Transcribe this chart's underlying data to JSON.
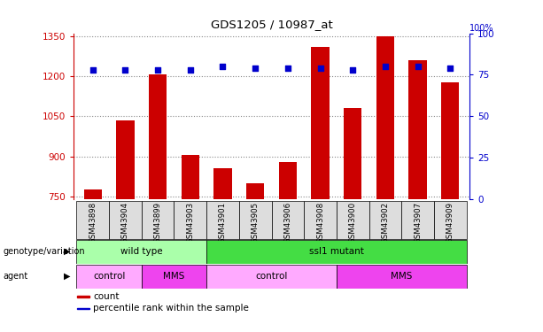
{
  "title": "GDS1205 / 10987_at",
  "samples": [
    "GSM43898",
    "GSM43904",
    "GSM43899",
    "GSM43903",
    "GSM43901",
    "GSM43905",
    "GSM43906",
    "GSM43908",
    "GSM43900",
    "GSM43902",
    "GSM43907",
    "GSM43909"
  ],
  "counts": [
    775,
    1035,
    1205,
    905,
    855,
    800,
    880,
    1310,
    1080,
    1350,
    1260,
    1175
  ],
  "percentile": [
    78,
    78,
    78,
    78,
    80,
    79,
    79,
    79,
    78,
    80,
    80,
    79
  ],
  "ylim_left": [
    740,
    1360
  ],
  "ylim_right": [
    0,
    100
  ],
  "yticks_left": [
    750,
    900,
    1050,
    1200,
    1350
  ],
  "yticks_right": [
    0,
    25,
    50,
    75,
    100
  ],
  "bar_color": "#cc0000",
  "dot_color": "#0000cc",
  "grid_color": "#888888",
  "genotype_groups": [
    {
      "label": "wild type",
      "start": 0,
      "end": 3,
      "color": "#aaffaa"
    },
    {
      "label": "ssl1 mutant",
      "start": 4,
      "end": 11,
      "color": "#44dd44"
    }
  ],
  "agent_groups": [
    {
      "label": "control",
      "start": 0,
      "end": 1,
      "color": "#ffaaff"
    },
    {
      "label": "MMS",
      "start": 2,
      "end": 3,
      "color": "#ee44ee"
    },
    {
      "label": "control",
      "start": 4,
      "end": 7,
      "color": "#ffaaff"
    },
    {
      "label": "MMS",
      "start": 8,
      "end": 11,
      "color": "#ee44ee"
    }
  ],
  "left_axis_color": "#cc0000",
  "right_axis_color": "#0000cc",
  "sample_bg_color": "#dddddd",
  "legend_items": [
    {
      "label": "count",
      "color": "#cc0000"
    },
    {
      "label": "percentile rank within the sample",
      "color": "#0000cc"
    }
  ],
  "fig_width": 6.13,
  "fig_height": 3.75,
  "fig_dpi": 100
}
